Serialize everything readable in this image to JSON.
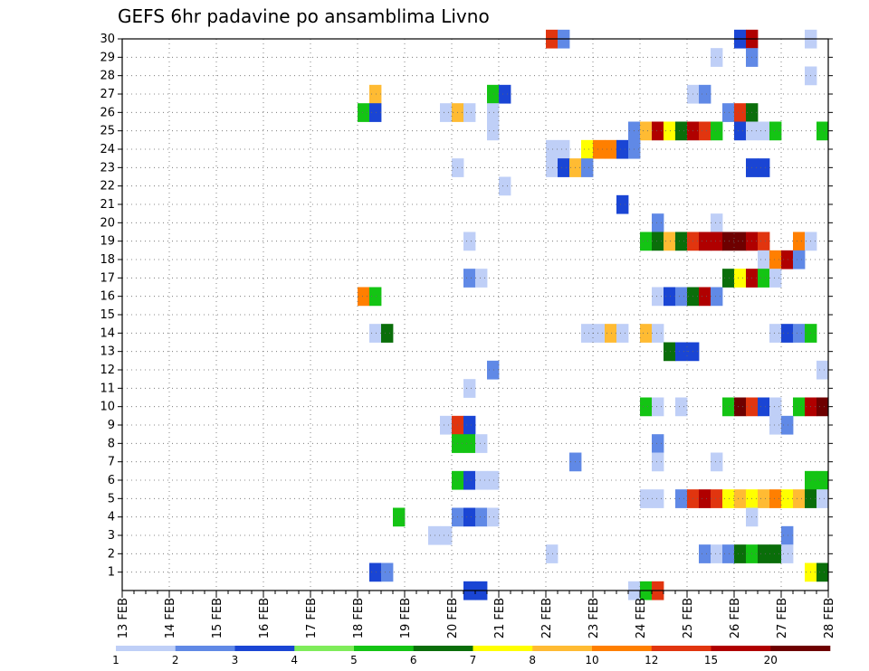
{
  "chart_data": {
    "type": "heatmap",
    "title": "GEFS 6hr padavine po ansamblima Livno",
    "xlabel": "",
    "ylabel": "",
    "x_ticks": [
      "13 FEB",
      "14 FEB",
      "15 FEB",
      "16 FEB",
      "17 FEB",
      "18 FEB",
      "19 FEB",
      "20 FEB",
      "21 FEB",
      "22 FEB",
      "23 FEB",
      "24 FEB",
      "25 FEB",
      "26 FEB",
      "27 FEB",
      "28 FEB"
    ],
    "y_ticks": [
      1,
      2,
      3,
      4,
      5,
      6,
      7,
      8,
      9,
      10,
      11,
      12,
      13,
      14,
      15,
      16,
      17,
      18,
      19,
      20,
      21,
      22,
      23,
      24,
      25,
      26,
      27,
      28,
      29,
      30
    ],
    "xlim_days": [
      0,
      15
    ],
    "ylim": [
      0,
      30
    ],
    "grid": true,
    "colorbar": {
      "labels": [
        "1",
        "2",
        "3",
        "4",
        "5",
        "6",
        "7",
        "8",
        "10",
        "12",
        "15",
        "20"
      ],
      "colors": [
        "#bfcff7",
        "#6089e6",
        "#1a45d4",
        "#7fec5a",
        "#14c414",
        "#0a6e0a",
        "#ffff00",
        "#ffbb33",
        "#ff7f00",
        "#e1350f",
        "#b00000",
        "#6e0000"
      ]
    },
    "cells": [
      [
        30,
        22.0,
        10
      ],
      [
        30,
        22.25,
        2
      ],
      [
        30,
        26.0,
        3
      ],
      [
        30,
        26.25,
        11
      ],
      [
        30,
        27.5,
        1
      ],
      [
        29,
        25.5,
        1
      ],
      [
        29,
        26.25,
        2
      ],
      [
        28,
        27.5,
        1
      ],
      [
        27,
        18.25,
        8
      ],
      [
        27,
        20.75,
        5
      ],
      [
        27,
        21.0,
        3
      ],
      [
        27,
        25.0,
        1
      ],
      [
        27,
        25.25,
        2
      ],
      [
        26,
        18.0,
        5
      ],
      [
        26,
        18.25,
        3
      ],
      [
        26,
        19.75,
        1
      ],
      [
        26,
        20.0,
        8
      ],
      [
        26,
        20.25,
        1
      ],
      [
        26,
        20.75,
        1
      ],
      [
        26,
        25.75,
        2
      ],
      [
        26,
        26.0,
        10
      ],
      [
        26,
        26.25,
        6
      ],
      [
        25,
        20.75,
        1
      ],
      [
        25,
        23.75,
        2
      ],
      [
        25,
        24.0,
        8
      ],
      [
        25,
        24.25,
        11
      ],
      [
        25,
        24.5,
        7
      ],
      [
        25,
        24.75,
        6
      ],
      [
        25,
        25.0,
        11
      ],
      [
        25,
        25.25,
        10
      ],
      [
        25,
        25.5,
        5
      ],
      [
        25,
        26.0,
        3
      ],
      [
        25,
        26.25,
        1
      ],
      [
        25,
        26.5,
        1
      ],
      [
        25,
        26.75,
        5
      ],
      [
        25,
        27.75,
        5
      ],
      [
        24,
        22.0,
        1
      ],
      [
        24,
        22.25,
        1
      ],
      [
        24,
        22.75,
        7
      ],
      [
        24,
        23.0,
        9
      ],
      [
        24,
        23.25,
        9
      ],
      [
        24,
        23.5,
        3
      ],
      [
        24,
        23.75,
        2
      ],
      [
        23,
        20.0,
        1
      ],
      [
        23,
        22.0,
        1
      ],
      [
        23,
        22.25,
        3
      ],
      [
        23,
        22.5,
        8
      ],
      [
        23,
        22.75,
        2
      ],
      [
        23,
        26.25,
        3
      ],
      [
        23,
        26.5,
        3
      ],
      [
        22,
        21.0,
        1
      ],
      [
        21,
        23.5,
        3
      ],
      [
        20,
        24.25,
        2
      ],
      [
        20,
        25.5,
        1
      ],
      [
        19,
        20.25,
        1
      ],
      [
        19,
        24.0,
        5
      ],
      [
        19,
        24.25,
        6
      ],
      [
        19,
        24.5,
        8
      ],
      [
        19,
        24.75,
        6
      ],
      [
        19,
        25.0,
        10
      ],
      [
        19,
        25.25,
        11
      ],
      [
        19,
        25.5,
        11
      ],
      [
        19,
        25.75,
        12
      ],
      [
        19,
        26.0,
        12
      ],
      [
        19,
        26.25,
        11
      ],
      [
        19,
        26.5,
        10
      ],
      [
        19,
        27.25,
        9
      ],
      [
        19,
        27.5,
        1
      ],
      [
        18,
        26.5,
        1
      ],
      [
        18,
        26.75,
        9
      ],
      [
        18,
        27.0,
        11
      ],
      [
        18,
        27.25,
        2
      ],
      [
        17,
        20.25,
        2
      ],
      [
        17,
        20.5,
        1
      ],
      [
        17,
        25.75,
        6
      ],
      [
        17,
        26.0,
        7
      ],
      [
        17,
        26.25,
        11
      ],
      [
        17,
        26.5,
        5
      ],
      [
        17,
        26.75,
        1
      ],
      [
        16,
        18.0,
        9
      ],
      [
        16,
        18.25,
        5
      ],
      [
        16,
        24.25,
        1
      ],
      [
        16,
        24.5,
        3
      ],
      [
        16,
        24.75,
        2
      ],
      [
        16,
        25.0,
        6
      ],
      [
        16,
        25.25,
        11
      ],
      [
        16,
        25.5,
        2
      ],
      [
        14,
        18.25,
        1
      ],
      [
        14,
        18.5,
        6
      ],
      [
        14,
        22.75,
        1
      ],
      [
        14,
        23.0,
        1
      ],
      [
        14,
        23.25,
        8
      ],
      [
        14,
        23.5,
        1
      ],
      [
        14,
        24.0,
        8
      ],
      [
        14,
        24.25,
        1
      ],
      [
        14,
        26.75,
        1
      ],
      [
        14,
        27.0,
        3
      ],
      [
        14,
        27.25,
        2
      ],
      [
        14,
        27.5,
        5
      ],
      [
        13,
        24.5,
        6
      ],
      [
        13,
        24.75,
        3
      ],
      [
        13,
        25.0,
        3
      ],
      [
        12,
        20.75,
        2
      ],
      [
        12,
        27.75,
        1
      ],
      [
        11,
        20.25,
        1
      ],
      [
        10,
        24.0,
        5
      ],
      [
        10,
        24.25,
        1
      ],
      [
        10,
        24.75,
        1
      ],
      [
        10,
        25.75,
        5
      ],
      [
        10,
        26.0,
        12
      ],
      [
        10,
        26.25,
        10
      ],
      [
        10,
        26.5,
        3
      ],
      [
        10,
        26.75,
        1
      ],
      [
        10,
        27.25,
        5
      ],
      [
        10,
        27.5,
        11
      ],
      [
        10,
        27.75,
        12
      ],
      [
        9,
        19.75,
        1
      ],
      [
        9,
        20.0,
        10
      ],
      [
        9,
        20.25,
        3
      ],
      [
        9,
        26.75,
        1
      ],
      [
        9,
        27.0,
        2
      ],
      [
        8,
        20.0,
        5
      ],
      [
        8,
        20.25,
        5
      ],
      [
        8,
        20.5,
        1
      ],
      [
        8,
        24.25,
        2
      ],
      [
        7,
        22.5,
        2
      ],
      [
        7,
        24.25,
        1
      ],
      [
        7,
        25.5,
        1
      ],
      [
        6,
        20.0,
        5
      ],
      [
        6,
        20.25,
        3
      ],
      [
        6,
        20.5,
        1
      ],
      [
        6,
        20.75,
        1
      ],
      [
        6,
        27.5,
        5
      ],
      [
        6,
        27.75,
        5
      ],
      [
        5,
        24.0,
        1
      ],
      [
        5,
        24.25,
        1
      ],
      [
        5,
        24.75,
        2
      ],
      [
        5,
        25.0,
        10
      ],
      [
        5,
        25.25,
        11
      ],
      [
        5,
        25.5,
        10
      ],
      [
        5,
        25.75,
        7
      ],
      [
        5,
        26.0,
        8
      ],
      [
        5,
        26.25,
        7
      ],
      [
        5,
        26.5,
        8
      ],
      [
        5,
        26.75,
        9
      ],
      [
        5,
        27.0,
        7
      ],
      [
        5,
        27.25,
        8
      ],
      [
        5,
        27.5,
        6
      ],
      [
        5,
        27.75,
        1
      ],
      [
        4,
        18.75,
        5
      ],
      [
        4,
        20.0,
        2
      ],
      [
        4,
        20.25,
        3
      ],
      [
        4,
        20.5,
        2
      ],
      [
        4,
        20.75,
        1
      ],
      [
        4,
        26.25,
        1
      ],
      [
        3,
        19.5,
        1
      ],
      [
        3,
        19.75,
        1
      ],
      [
        3,
        27.0,
        2
      ],
      [
        2,
        22.0,
        1
      ],
      [
        2,
        25.25,
        2
      ],
      [
        2,
        25.5,
        1
      ],
      [
        2,
        25.75,
        2
      ],
      [
        2,
        26.0,
        6
      ],
      [
        2,
        26.25,
        5
      ],
      [
        2,
        26.5,
        6
      ],
      [
        2,
        26.75,
        6
      ],
      [
        2,
        27.0,
        1
      ],
      [
        1,
        18.25,
        3
      ],
      [
        1,
        18.5,
        2
      ],
      [
        1,
        27.5,
        7
      ],
      [
        1,
        27.75,
        6
      ],
      [
        0,
        20.25,
        3
      ],
      [
        0,
        20.5,
        3
      ],
      [
        0,
        23.75,
        1
      ],
      [
        0,
        24.0,
        5
      ],
      [
        0,
        24.25,
        10
      ]
    ]
  }
}
